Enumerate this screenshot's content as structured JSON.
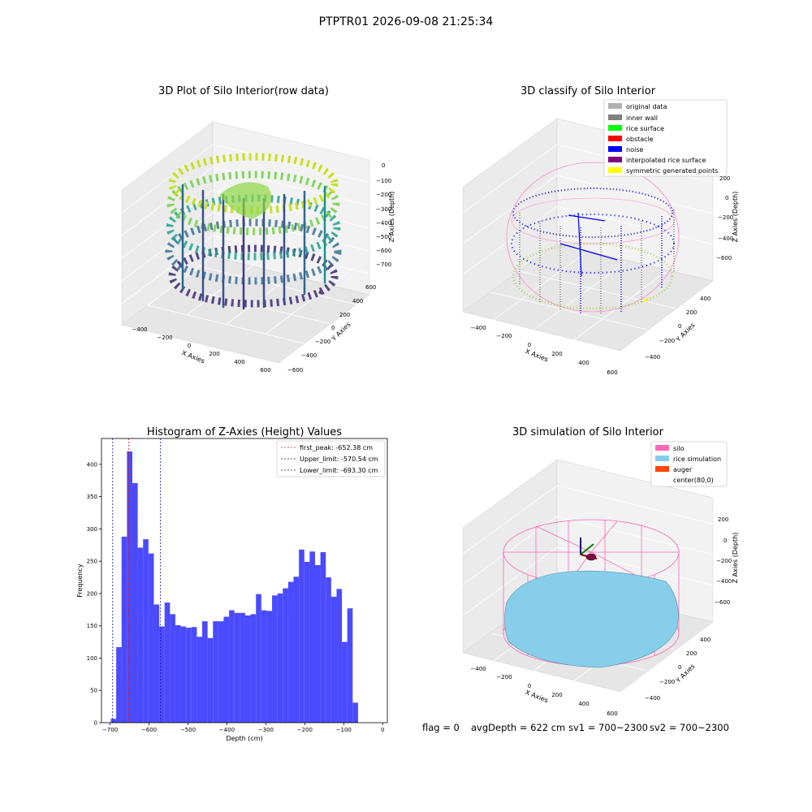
{
  "suptitle": "PTPTR01 2026-09-08 21:25:34",
  "footer": {
    "flag": "flag = 0",
    "avg_depth": "avgDepth = 622 cm",
    "sv1": "sv1 = 700~2300",
    "sv2": "sv2 = 700~2300"
  },
  "colors": {
    "hist_bar": "#4a4aff",
    "first_peak": "#e31a1c",
    "limits": "#1010c0",
    "pane": "#f2f2f2",
    "silo": "#ff69b4",
    "rice_simulation": "#87ceeb",
    "auger": "#ff4500"
  },
  "panels": {
    "raw": {
      "title": "3D Plot of Silo Interior(row data)",
      "xlabel": "X Axies",
      "ylabel": "Y Axies",
      "zlabel": "Z Axies (Depth)",
      "xticks": [
        "−400",
        "−200",
        "0",
        "200",
        "400",
        "600"
      ],
      "yticks": [
        "600",
        "400",
        "200",
        "0",
        "−200",
        "−400",
        "−600"
      ],
      "zticks": [
        "0",
        "−100",
        "−200",
        "−300",
        "−400",
        "−500",
        "−600",
        "−700"
      ],
      "colormap": "viridis"
    },
    "classify": {
      "title": "3D classify of Silo Interior",
      "xlabel": "X Axies",
      "ylabel": "Y Axies",
      "zlabel": "Z Axies (Depth)",
      "xticks": [
        "−400",
        "−200",
        "0",
        "200",
        "400",
        "600"
      ],
      "yticks": [
        "400",
        "200",
        "0",
        "−200",
        "−400"
      ],
      "zticks": [
        "200",
        "0",
        "−200",
        "−400",
        "−600"
      ],
      "legend": [
        {
          "label": "original data",
          "color": "#b0b0b0"
        },
        {
          "label": "inner wall",
          "color": "#808080"
        },
        {
          "label": "rice surface",
          "color": "#00ff00"
        },
        {
          "label": "obstacle",
          "color": "#ff0000"
        },
        {
          "label": "noise",
          "color": "#0000ff"
        },
        {
          "label": "interpolated rice surface",
          "color": "#800080"
        },
        {
          "label": "symmetric generated points",
          "color": "#ffff00"
        }
      ]
    },
    "simulation": {
      "title": "3D simulation of Silo Interior",
      "xlabel": "X Axies",
      "ylabel": "Y Axies",
      "zlabel": "Z Axies (Depth)",
      "xticks": [
        "−400",
        "−200",
        "0",
        "200",
        "400",
        "600"
      ],
      "yticks": [
        "400",
        "200",
        "0",
        "−200",
        "−400"
      ],
      "zticks": [
        "200",
        "0",
        "−200",
        "−400",
        "−600"
      ],
      "legend": [
        {
          "label": "silo",
          "color": "#ff69b4"
        },
        {
          "label": "rice simulation",
          "color": "#87ceeb"
        },
        {
          "label": "auger",
          "color": "#ff4500"
        },
        {
          "label": "center(80,0)",
          "color": ""
        }
      ]
    }
  },
  "chart_data": {
    "type": "bar",
    "title": "Histogram of Z-Axies (Height) Values",
    "xlabel": "Depth (cm)",
    "ylabel": "Frequency",
    "xlim": [
      -722,
      12
    ],
    "ylim": [
      0,
      440
    ],
    "xticks": [
      -700,
      -600,
      -500,
      -400,
      -300,
      -200,
      -100,
      0
    ],
    "yticks": [
      0,
      50,
      100,
      150,
      200,
      250,
      300,
      350,
      400
    ],
    "xtick_labels": [
      "−700",
      "−600",
      "−500",
      "−400",
      "−300",
      "−200",
      "−100",
      "0"
    ],
    "yticks_labels": [
      "0",
      "50",
      "100",
      "150",
      "200",
      "250",
      "300",
      "350",
      "400"
    ],
    "bin_start": -698,
    "bin_width": 13.8,
    "values": [
      6,
      117,
      288,
      420,
      371,
      271,
      284,
      262,
      183,
      149,
      186,
      168,
      151,
      149,
      147,
      148,
      133,
      157,
      131,
      157,
      157,
      164,
      174,
      170,
      170,
      166,
      168,
      199,
      174,
      173,
      197,
      200,
      208,
      218,
      226,
      268,
      249,
      265,
      244,
      264,
      225,
      195,
      207,
      125,
      177,
      31
    ],
    "lines": [
      {
        "label": "first_peak: -652.38 cm",
        "x": -652.38,
        "color": "#e31a1c"
      },
      {
        "label": "Upper_limit: -570.54 cm",
        "x": -570.54,
        "color": "#1010c0"
      },
      {
        "label": "Lower_limit: -693.30 cm",
        "x": -693.3,
        "color": "#1010c0"
      }
    ]
  }
}
